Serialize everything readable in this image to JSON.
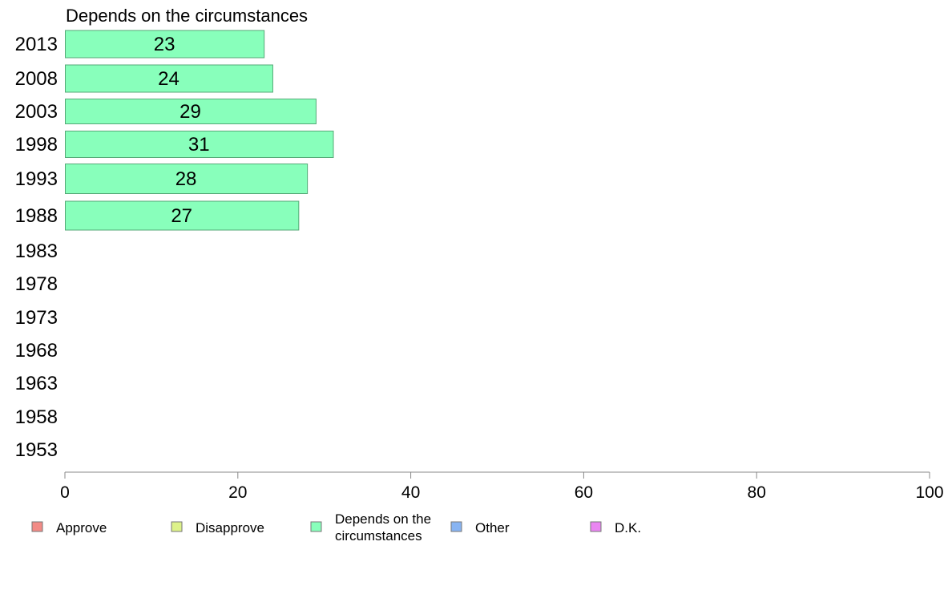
{
  "chart_data": {
    "type": "bar",
    "orientation": "horizontal",
    "title": "Depends on the circumstances",
    "categories": [
      "2013",
      "2008",
      "2003",
      "1998",
      "1993",
      "1988",
      "1983",
      "1978",
      "1973",
      "1968",
      "1963",
      "1958",
      "1953"
    ],
    "values": [
      23,
      24,
      29,
      31,
      28,
      27,
      null,
      null,
      null,
      null,
      null,
      null,
      null
    ],
    "xlim": [
      0,
      100
    ],
    "xticks": [
      "0",
      "20",
      "40",
      "60",
      "80",
      "100"
    ],
    "bar_color": "#88ffbb",
    "bar_stroke": "#55aa77",
    "grid": false,
    "legend_position": "bottom",
    "legend": [
      {
        "label": "Approve",
        "color": "#f28b86"
      },
      {
        "label": "Disapprove",
        "color": "#ddf28a"
      },
      {
        "label": "Depends on the circumstances",
        "lines": [
          "Depends on the",
          "circumstances"
        ],
        "color": "#88ffbb"
      },
      {
        "label": "Other",
        "color": "#88b4f2"
      },
      {
        "label": "D.K.",
        "color": "#ea86f2"
      }
    ]
  }
}
